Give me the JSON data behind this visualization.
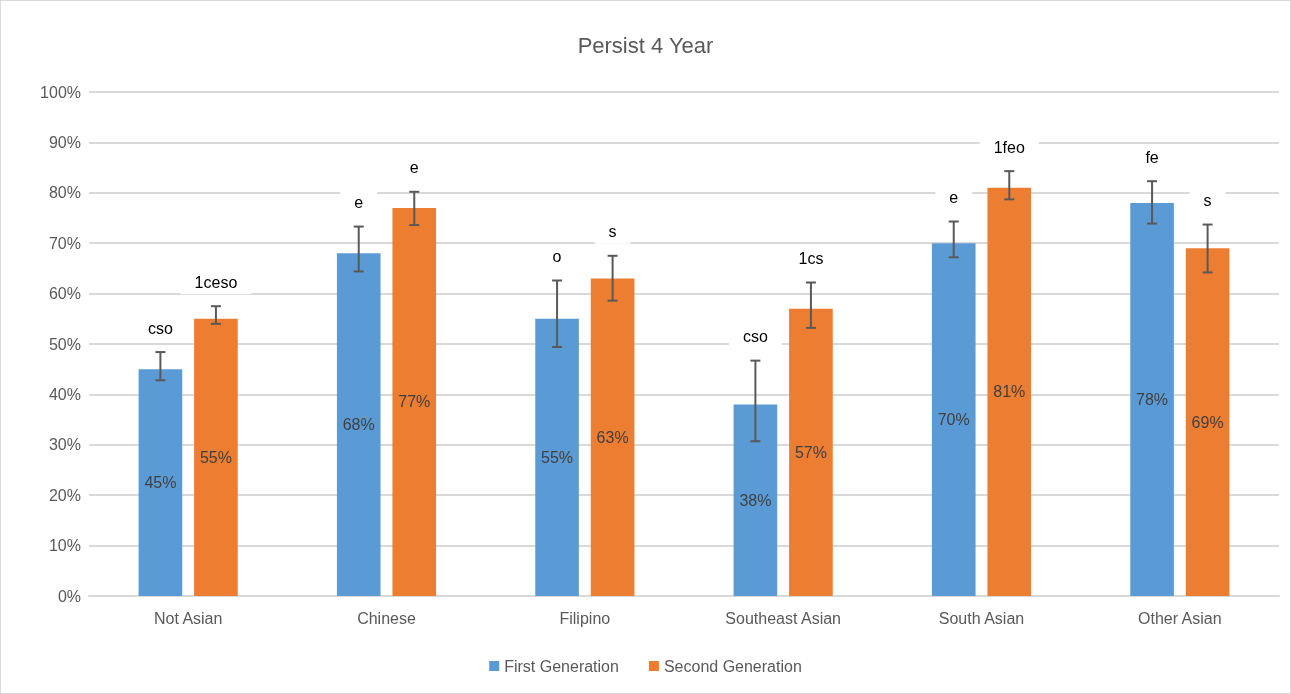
{
  "chart_data": {
    "type": "bar",
    "title": "Persist 4 Year",
    "categories": [
      "Not Asian",
      "Chinese",
      "Filipino",
      "Southeast Asian",
      "South Asian",
      "Other Asian"
    ],
    "series": [
      {
        "name": "First Generation",
        "color": "#5b9bd5",
        "values": [
          45,
          68,
          55,
          38,
          70,
          78
        ],
        "value_labels": [
          "45%",
          "68%",
          "55%",
          "38%",
          "70%",
          "78%"
        ],
        "errors": [
          [
            42.8,
            48.4
          ],
          [
            64.4,
            73.3
          ],
          [
            49.4,
            62.6
          ],
          [
            30.7,
            46.7
          ],
          [
            67.2,
            74.3
          ],
          [
            73.9,
            82.3
          ]
        ]
      },
      {
        "name": "Second Generation",
        "color": "#ed7d31",
        "values": [
          55,
          77,
          63,
          57,
          81,
          69
        ],
        "value_labels": [
          "55%",
          "77%",
          "63%",
          "57%",
          "81%",
          "69%"
        ],
        "errors": [
          [
            54.0,
            57.5
          ],
          [
            73.6,
            80.2
          ],
          [
            58.6,
            67.5
          ],
          [
            53.2,
            62.2
          ],
          [
            78.7,
            84.3
          ],
          [
            64.2,
            73.7
          ]
        ]
      }
    ],
    "ylim": [
      0,
      100
    ],
    "yticks": [
      {
        "value": 0,
        "label": "0%"
      },
      {
        "value": 10,
        "label": "10%"
      },
      {
        "value": 20,
        "label": "20%"
      },
      {
        "value": 30,
        "label": "30%"
      },
      {
        "value": 40,
        "label": "40%"
      },
      {
        "value": 50,
        "label": "50%"
      },
      {
        "value": 60,
        "label": "60%"
      },
      {
        "value": 70,
        "label": "70%"
      },
      {
        "value": 80,
        "label": "80%"
      },
      {
        "value": 90,
        "label": "90%"
      },
      {
        "value": 100,
        "label": "100%"
      }
    ],
    "grid": "y",
    "legend": "bottom",
    "annotations": [
      "cso",
      "1ceso",
      "e",
      "e",
      "o",
      "s",
      "cso",
      "1cs",
      "e",
      "1feo",
      "fe",
      "s"
    ]
  }
}
